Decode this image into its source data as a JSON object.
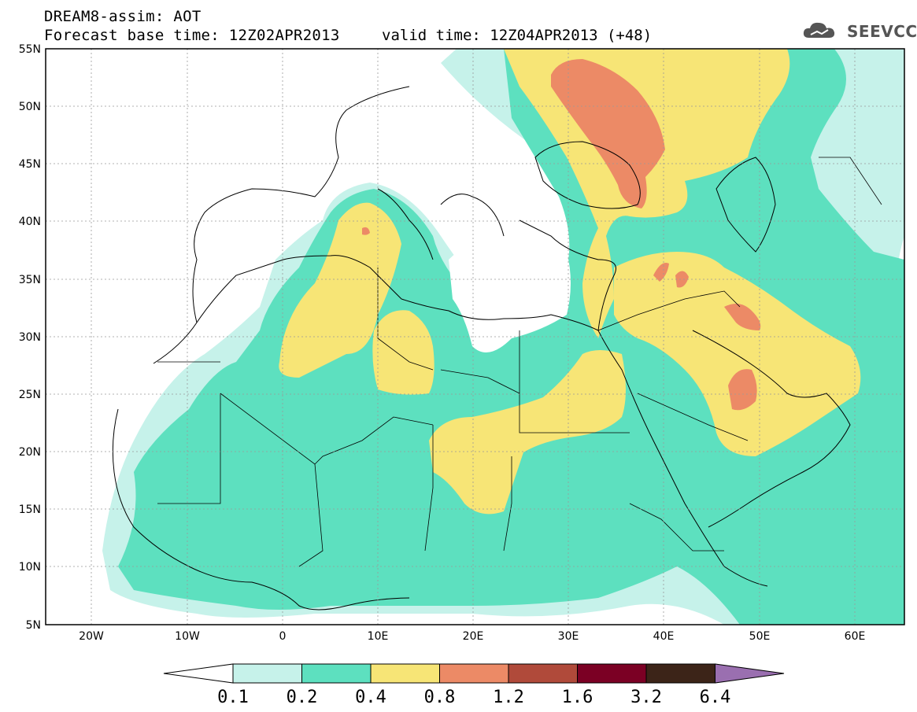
{
  "header": {
    "title_line1": "DREAM8-assim: AOT",
    "base_time": "Forecast base time: 12Z02APR2013",
    "valid_time": "valid time: 12Z04APR2013 (+48)"
  },
  "logo": {
    "text": "SEEVCCC",
    "icon": "cloud-icon",
    "color": "#555555"
  },
  "axes": {
    "lon_ticks": [
      "20W",
      "10W",
      "0",
      "10E",
      "20E",
      "30E",
      "40E",
      "50E",
      "60E"
    ],
    "lat_ticks": [
      "55N",
      "50N",
      "45N",
      "40N",
      "35N",
      "30N",
      "25N",
      "20N",
      "15N",
      "10N",
      "5N"
    ],
    "lon_range": [
      -25,
      65
    ],
    "lat_range": [
      5,
      55
    ]
  },
  "colorbar": {
    "labels": [
      "0.1",
      "0.2",
      "0.4",
      "0.8",
      "1.2",
      "1.6",
      "3.2",
      "6.4"
    ],
    "colors": [
      "#ffffff",
      "#c6f2ea",
      "#5de0bf",
      "#f7e576",
      "#ec8a66",
      "#b04a3a",
      "#7b0024",
      "#3c2418",
      "#9a6fb0"
    ]
  }
}
